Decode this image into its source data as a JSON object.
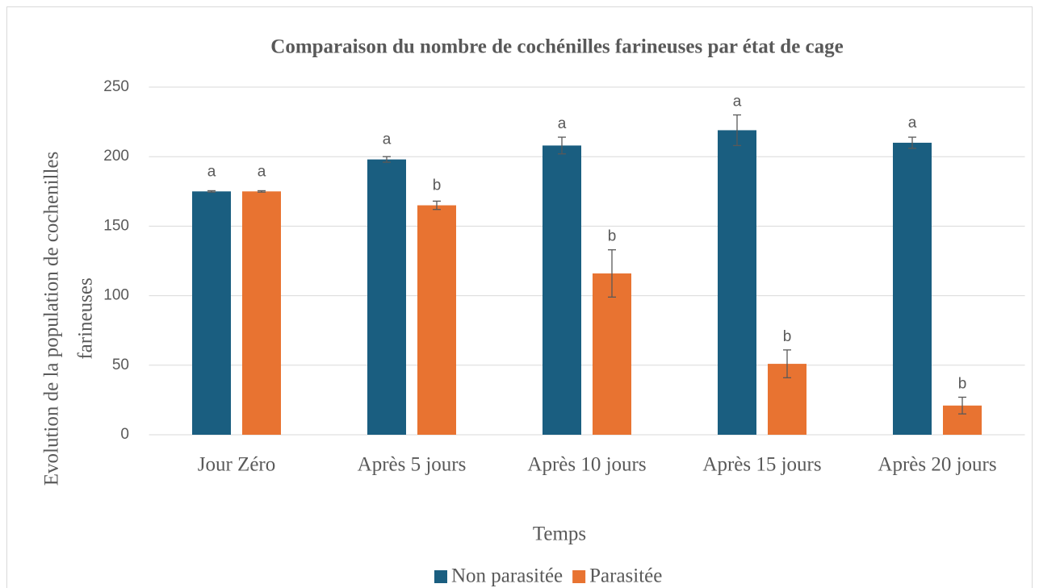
{
  "chart_data": {
    "type": "bar",
    "title": "Comparaison du nombre de cochénilles farineuses par état de cage",
    "x_label": "Temps",
    "y_label": [
      "Evolution de  la  population de cochenilles",
      "farineuses"
    ],
    "categories": [
      "Jour Zéro",
      "Après 5 jours",
      "Après 10 jours",
      "Après 15 jours",
      "Après 20 jours"
    ],
    "series": [
      {
        "name": "Non parasitée",
        "color": "#1a5e80",
        "values": [
          175,
          198,
          208,
          219,
          210
        ],
        "errors": [
          0.5,
          2,
          6,
          11,
          4
        ],
        "letters": [
          "a",
          "a",
          "a",
          "a",
          "a"
        ]
      },
      {
        "name": "Parasitée",
        "color": "#e87331",
        "values": [
          175,
          165,
          116,
          51,
          21
        ],
        "errors": [
          0.5,
          3,
          17,
          10,
          6
        ],
        "letters": [
          "a",
          "b",
          "b",
          "b",
          "b"
        ]
      }
    ],
    "ylim": [
      0,
      250
    ],
    "yticks": [
      0,
      50,
      100,
      150,
      200,
      250
    ],
    "grid": true,
    "legend": "bottom"
  }
}
